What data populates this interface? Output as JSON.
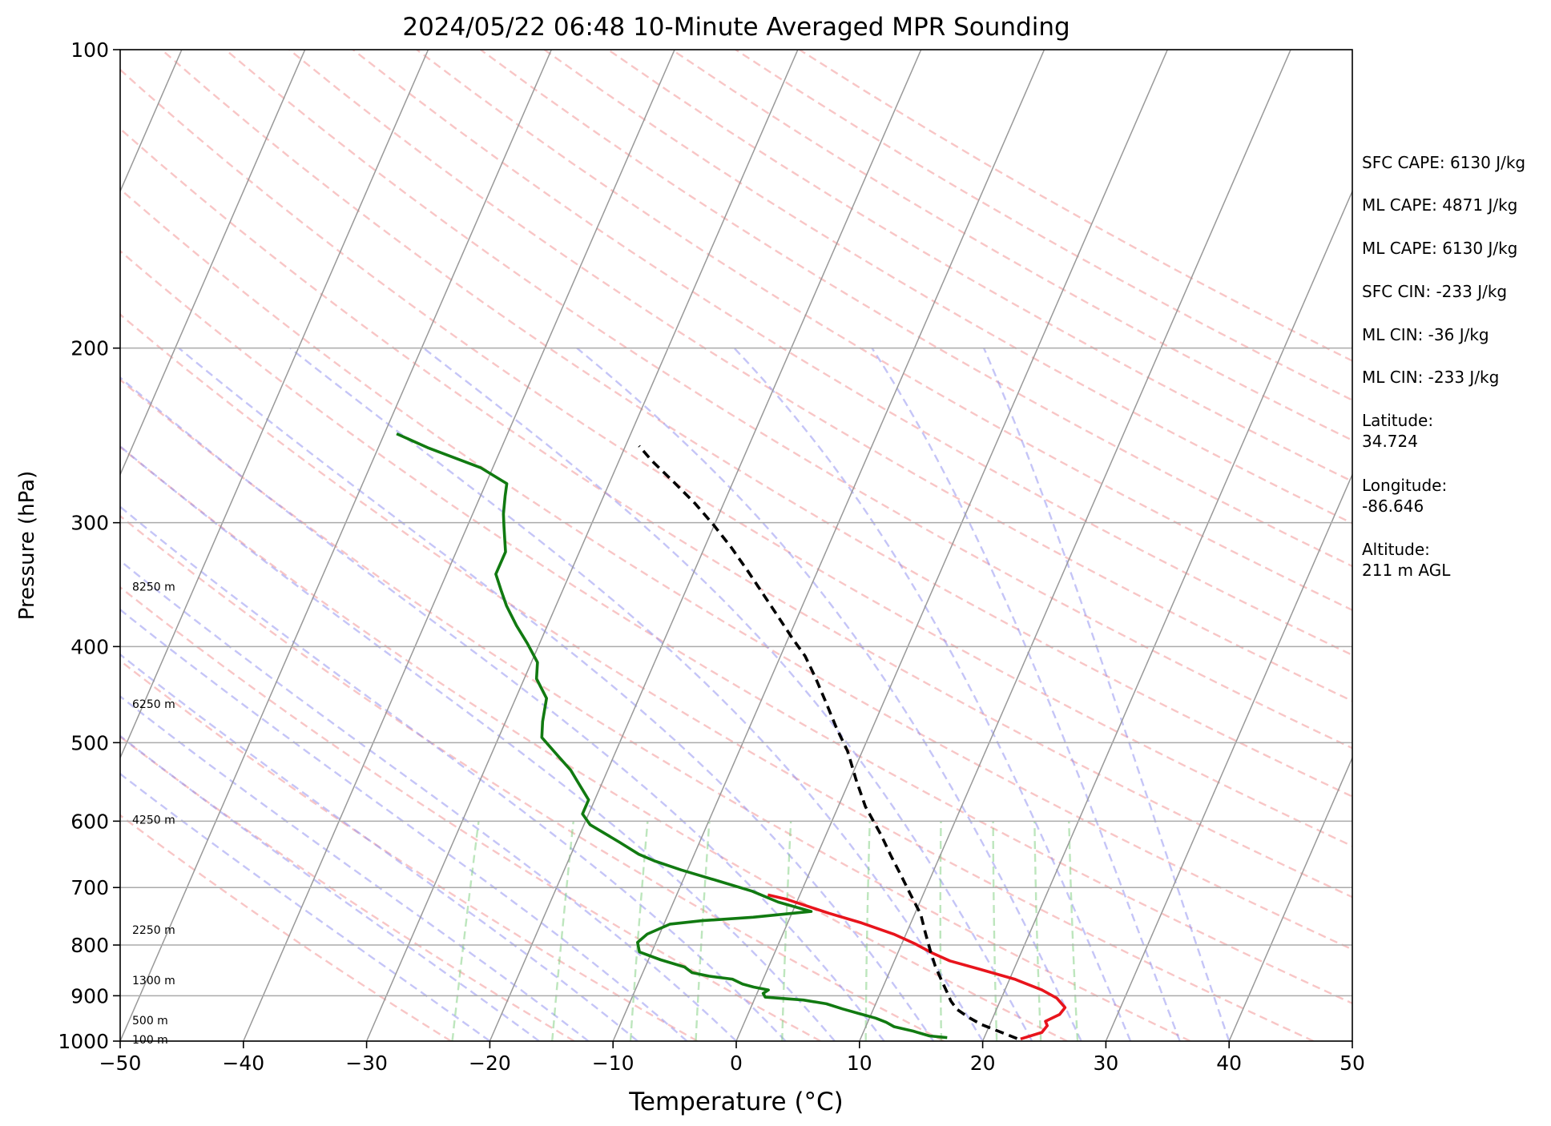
{
  "chart_data": {
    "type": "line",
    "subtype": "skew-t log-p sounding",
    "title": "2024/05/22 06:48 10-Minute Averaged MPR Sounding",
    "xlabel": "Temperature (°C)",
    "ylabel": "Pressure (hPa)",
    "xlim": [
      -50,
      50
    ],
    "ylim": [
      1000,
      100
    ],
    "y_scale": "log",
    "x_ticks": [
      -50,
      -40,
      -30,
      -20,
      -10,
      0,
      10,
      20,
      30,
      40,
      50
    ],
    "x_tick_labels": [
      "−50",
      "−40",
      "−30",
      "−20",
      "−10",
      "0",
      "10",
      "20",
      "30",
      "40",
      "50"
    ],
    "y_ticks": [
      100,
      200,
      300,
      400,
      500,
      600,
      700,
      800,
      900,
      1000
    ],
    "y_tick_labels": [
      "100",
      "200",
      "300",
      "400",
      "500",
      "600",
      "700",
      "800",
      "900",
      "1000"
    ],
    "grid": true,
    "height_labels": [
      {
        "text": "8250 m",
        "pressure": 348
      },
      {
        "text": "6250 m",
        "pressure": 457
      },
      {
        "text": "4250 m",
        "pressure": 598
      },
      {
        "text": "2250 m",
        "pressure": 772
      },
      {
        "text": "1300 m",
        "pressure": 868
      },
      {
        "text": "500 m",
        "pressure": 953
      },
      {
        "text": "100 m",
        "pressure": 996
      }
    ],
    "series": [
      {
        "color": "#e8141c",
        "style": "solid",
        "points": [
          [
            23,
            995
          ],
          [
            24.5,
            980
          ],
          [
            24.7,
            965
          ],
          [
            24.4,
            955
          ],
          [
            25.3,
            940
          ],
          [
            25.5,
            925
          ],
          [
            24.5,
            905
          ],
          [
            23,
            888
          ],
          [
            20.4,
            866
          ],
          [
            17.2,
            846
          ],
          [
            14.5,
            830
          ],
          [
            12.8,
            815
          ],
          [
            11,
            797
          ],
          [
            9,
            780
          ],
          [
            6,
            760
          ],
          [
            3,
            743
          ],
          [
            -1,
            719
          ],
          [
            -2.6,
            712
          ]
        ]
      },
      {
        "color": "#117a11",
        "style": "solid",
        "points": [
          [
            17,
            992
          ],
          [
            15.5,
            988
          ],
          [
            14,
            977
          ],
          [
            12.3,
            967
          ],
          [
            11.5,
            957
          ],
          [
            10.5,
            948
          ],
          [
            9,
            938
          ],
          [
            7.5,
            928
          ],
          [
            6,
            917
          ],
          [
            4,
            909
          ],
          [
            0.8,
            903
          ],
          [
            0.5,
            895
          ],
          [
            0.8,
            888
          ],
          [
            -0.5,
            882
          ],
          [
            -1.5,
            876
          ],
          [
            -2.5,
            866
          ],
          [
            -4.5,
            860
          ],
          [
            -6,
            853
          ],
          [
            -6.8,
            842
          ],
          [
            -9,
            828
          ],
          [
            -11,
            813
          ],
          [
            -11.5,
            795
          ],
          [
            -11,
            780
          ],
          [
            -9.5,
            762
          ],
          [
            -7,
            756
          ],
          [
            -3,
            750
          ],
          [
            1.5,
            740
          ],
          [
            -1.5,
            724
          ],
          [
            -4,
            706
          ],
          [
            -7,
            690
          ],
          [
            -10.5,
            672
          ],
          [
            -13,
            658
          ],
          [
            -14.5,
            648
          ],
          [
            -16.5,
            630
          ],
          [
            -19.5,
            605
          ],
          [
            -20.5,
            590
          ],
          [
            -20.5,
            571
          ],
          [
            -22,
            548
          ],
          [
            -23,
            533
          ],
          [
            -24.5,
            516
          ],
          [
            -26.5,
            494
          ],
          [
            -27,
            476
          ],
          [
            -27.5,
            451
          ],
          [
            -29,
            431
          ],
          [
            -29.5,
            415
          ],
          [
            -31,
            397
          ],
          [
            -32.5,
            381
          ],
          [
            -34,
            364
          ],
          [
            -35,
            351
          ],
          [
            -36,
            338
          ],
          [
            -36,
            321
          ],
          [
            -37,
            303
          ],
          [
            -37.5,
            294
          ],
          [
            -38,
            282
          ],
          [
            -38.3,
            274
          ],
          [
            -41,
            264
          ],
          [
            -46,
            252
          ],
          [
            -49,
            244
          ]
        ]
      },
      {
        "color": "#000000",
        "style": "dashed",
        "points": [
          [
            22.7,
            994
          ],
          [
            21,
            978
          ],
          [
            19.3,
            962
          ],
          [
            18,
            946
          ],
          [
            16.8,
            929
          ],
          [
            16,
            911
          ],
          [
            15.5,
            896
          ],
          [
            14.5,
            868
          ],
          [
            13.5,
            840
          ],
          [
            12.6,
            812
          ],
          [
            11.6,
            780
          ],
          [
            10.5,
            745
          ],
          [
            9,
            712
          ],
          [
            7.5,
            680
          ],
          [
            6,
            650
          ],
          [
            4.5,
            620
          ],
          [
            2.2,
            580
          ],
          [
            0.5,
            545
          ],
          [
            -1.2,
            510
          ],
          [
            -3,
            482
          ],
          [
            -4.7,
            455
          ],
          [
            -6.4,
            430
          ],
          [
            -8,
            409
          ],
          [
            -9.7,
            392
          ],
          [
            -11.5,
            374
          ],
          [
            -13.5,
            355
          ],
          [
            -15.5,
            337
          ],
          [
            -17.8,
            318
          ],
          [
            -20,
            302
          ],
          [
            -22.3,
            287
          ],
          [
            -24.8,
            273
          ],
          [
            -27.3,
            260
          ],
          [
            -28.9,
            251
          ]
        ]
      }
    ]
  },
  "info": {
    "sfc_cape": "SFC CAPE: 6130 J/kg",
    "ml_cape_1": "ML CAPE: 4871 J/kg",
    "ml_cape_2": "ML CAPE: 6130 J/kg",
    "sfc_cin": "SFC CIN: -233 J/kg",
    "ml_cin_1": "ML CIN: -36 J/kg",
    "ml_cin_2": "ML CIN: -233 J/kg",
    "latitude": "Latitude:\n34.724",
    "longitude": "Longitude:\n-86.646",
    "altitude": "Altitude:\n211 m AGL"
  }
}
